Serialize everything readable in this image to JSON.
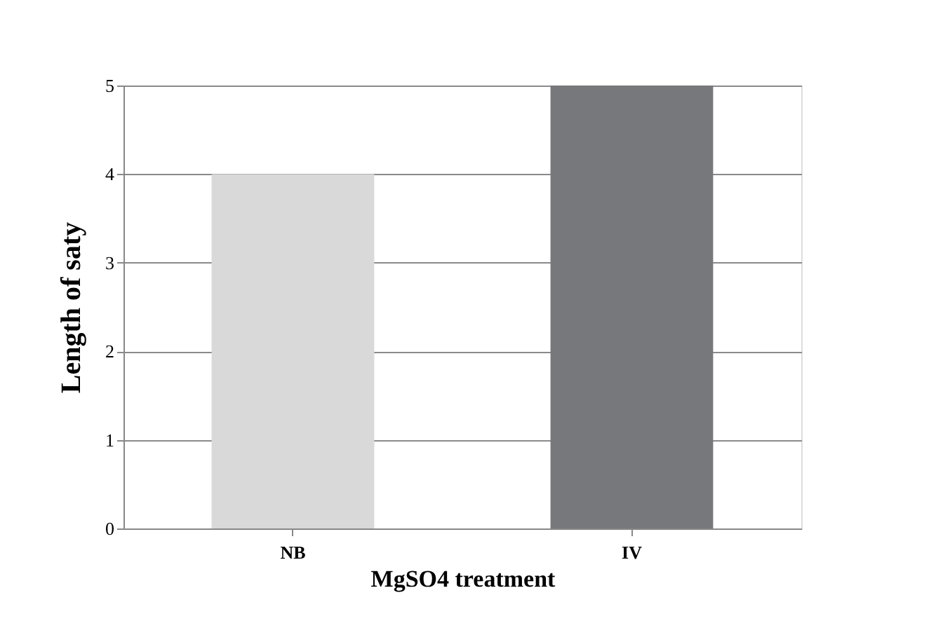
{
  "chart_data": {
    "type": "bar",
    "xlabel": "MgSO4 treatment",
    "ylabel": "Length of saty",
    "categories": [
      "NB",
      "IV"
    ],
    "values": [
      4,
      5
    ],
    "colors": [
      "#d9d9d9",
      "#77787b"
    ],
    "ylim": [
      0,
      5
    ],
    "yticks": [
      0,
      1,
      2,
      3,
      4,
      5
    ],
    "grid": "y"
  }
}
